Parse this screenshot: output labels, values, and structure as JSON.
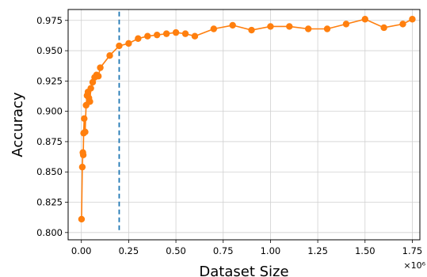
{
  "chart_data": {
    "type": "line",
    "title": "",
    "xlabel": "Dataset Size",
    "ylabel": "Accuracy",
    "x_offset_label": "×10⁶",
    "xlim": [
      -0.07,
      1.79
    ],
    "ylim": [
      0.794,
      0.984
    ],
    "x_ticks": [
      0.0,
      0.25,
      0.5,
      0.75,
      1.0,
      1.25,
      1.5,
      1.75
    ],
    "x_tick_labels": [
      "0.00",
      "0.25",
      "0.50",
      "0.75",
      "1.00",
      "1.25",
      "1.50",
      "1.75"
    ],
    "y_ticks": [
      0.8,
      0.825,
      0.85,
      0.875,
      0.9,
      0.925,
      0.95,
      0.975
    ],
    "y_tick_labels": [
      "0.800",
      "0.825",
      "0.850",
      "0.875",
      "0.900",
      "0.925",
      "0.950",
      "0.975"
    ],
    "grid": true,
    "colors": {
      "series": "#ff7f0e",
      "reference_line": "#1f77b4",
      "grid": "#d0d0d0"
    },
    "reference_line": {
      "x": 0.2,
      "y_range": [
        0.802,
        0.984
      ],
      "style": "dashed"
    },
    "series": [
      {
        "x": [
          0.001,
          0.005,
          0.008,
          0.01,
          0.012,
          0.015,
          0.02,
          0.025,
          0.03,
          0.035,
          0.04,
          0.045,
          0.05,
          0.06,
          0.07,
          0.08,
          0.09,
          0.1,
          0.15,
          0.2,
          0.25,
          0.3,
          0.35,
          0.4,
          0.45,
          0.5,
          0.55,
          0.6,
          0.7,
          0.8,
          0.9,
          1.0,
          1.1,
          1.2,
          1.3,
          1.4,
          1.5,
          1.6,
          1.7,
          1.75
        ],
        "y": [
          0.811,
          0.854,
          0.866,
          0.864,
          0.882,
          0.894,
          0.883,
          0.905,
          0.913,
          0.916,
          0.911,
          0.908,
          0.919,
          0.924,
          0.928,
          0.93,
          0.929,
          0.936,
          0.946,
          0.954,
          0.956,
          0.96,
          0.962,
          0.963,
          0.964,
          0.965,
          0.964,
          0.962,
          0.968,
          0.971,
          0.967,
          0.97,
          0.97,
          0.968,
          0.968,
          0.972,
          0.976,
          0.969,
          0.972,
          0.976
        ]
      }
    ]
  }
}
